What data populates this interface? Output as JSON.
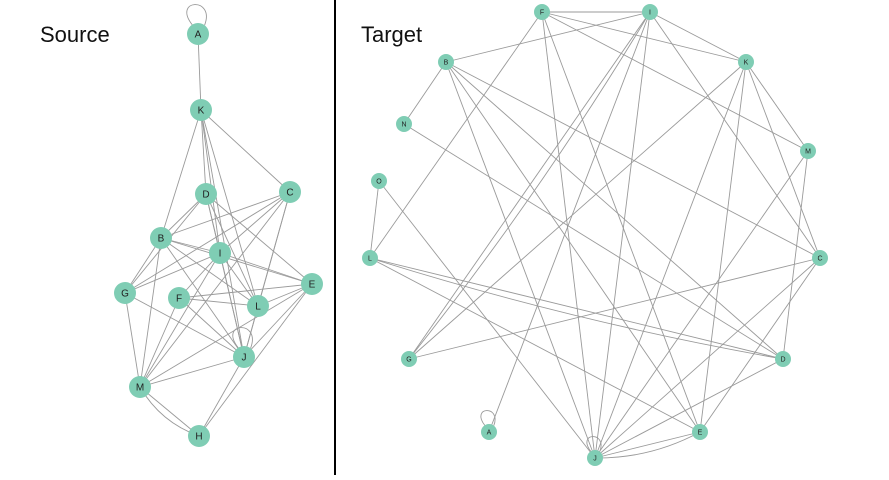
{
  "panels": {
    "source": {
      "title": "Source"
    },
    "target": {
      "title": "Target"
    }
  },
  "colors": {
    "node_fill": "#7fcdb4",
    "edge": "#9a9a9a",
    "label": "#222222"
  },
  "graphs": {
    "source": {
      "nodes": [
        "A",
        "K",
        "D",
        "C",
        "B",
        "I",
        "E",
        "G",
        "F",
        "L",
        "J",
        "M",
        "H"
      ],
      "edges": [
        [
          "A",
          "A"
        ],
        [
          "A",
          "K"
        ],
        [
          "K",
          "D"
        ],
        [
          "K",
          "I"
        ],
        [
          "K",
          "C"
        ],
        [
          "K",
          "B"
        ],
        [
          "K",
          "L"
        ],
        [
          "K",
          "J"
        ],
        [
          "D",
          "I"
        ],
        [
          "D",
          "L"
        ],
        [
          "D",
          "J"
        ],
        [
          "D",
          "E"
        ],
        [
          "D",
          "B"
        ],
        [
          "D",
          "G"
        ],
        [
          "C",
          "B"
        ],
        [
          "C",
          "I"
        ],
        [
          "C",
          "G"
        ],
        [
          "C",
          "L"
        ],
        [
          "C",
          "J"
        ],
        [
          "C",
          "M"
        ],
        [
          "B",
          "I"
        ],
        [
          "B",
          "L"
        ],
        [
          "B",
          "E"
        ],
        [
          "B",
          "G"
        ],
        [
          "B",
          "M"
        ],
        [
          "B",
          "J"
        ],
        [
          "I",
          "E"
        ],
        [
          "I",
          "G"
        ],
        [
          "I",
          "J"
        ],
        [
          "I",
          "L"
        ],
        [
          "I",
          "M"
        ],
        [
          "I",
          "F"
        ],
        [
          "E",
          "L"
        ],
        [
          "E",
          "J"
        ],
        [
          "E",
          "M"
        ],
        [
          "E",
          "H"
        ],
        [
          "E",
          "F"
        ],
        [
          "G",
          "M"
        ],
        [
          "G",
          "J"
        ],
        [
          "F",
          "L"
        ],
        [
          "F",
          "J"
        ],
        [
          "F",
          "M"
        ],
        [
          "L",
          "J"
        ],
        [
          "J",
          "J"
        ],
        [
          "J",
          "M"
        ],
        [
          "M",
          "H"
        ],
        [
          "M",
          "H"
        ],
        [
          "J",
          "H"
        ]
      ]
    },
    "target": {
      "nodes": [
        "F",
        "I",
        "B",
        "K",
        "N",
        "M",
        "O",
        "C",
        "L",
        "G",
        "D",
        "A",
        "E",
        "J"
      ],
      "edges": [
        [
          "F",
          "I"
        ],
        [
          "F",
          "K"
        ],
        [
          "F",
          "M"
        ],
        [
          "F",
          "J"
        ],
        [
          "F",
          "E"
        ],
        [
          "F",
          "L"
        ],
        [
          "I",
          "K"
        ],
        [
          "I",
          "C"
        ],
        [
          "I",
          "G"
        ],
        [
          "I",
          "J"
        ],
        [
          "I",
          "A"
        ],
        [
          "B",
          "N"
        ],
        [
          "B",
          "J"
        ],
        [
          "B",
          "E"
        ],
        [
          "B",
          "D"
        ],
        [
          "B",
          "C"
        ],
        [
          "B",
          "I"
        ],
        [
          "K",
          "M"
        ],
        [
          "K",
          "C"
        ],
        [
          "K",
          "J"
        ],
        [
          "K",
          "E"
        ],
        [
          "K",
          "G"
        ],
        [
          "N",
          "D"
        ],
        [
          "M",
          "D"
        ],
        [
          "M",
          "J"
        ],
        [
          "O",
          "L"
        ],
        [
          "O",
          "J"
        ],
        [
          "C",
          "G"
        ],
        [
          "C",
          "J"
        ],
        [
          "C",
          "E"
        ],
        [
          "L",
          "D"
        ],
        [
          "L",
          "E"
        ],
        [
          "L",
          "D"
        ],
        [
          "G",
          "I"
        ],
        [
          "D",
          "J"
        ],
        [
          "A",
          "A"
        ],
        [
          "J",
          "J"
        ],
        [
          "E",
          "J"
        ],
        [
          "J",
          "E"
        ]
      ]
    }
  }
}
